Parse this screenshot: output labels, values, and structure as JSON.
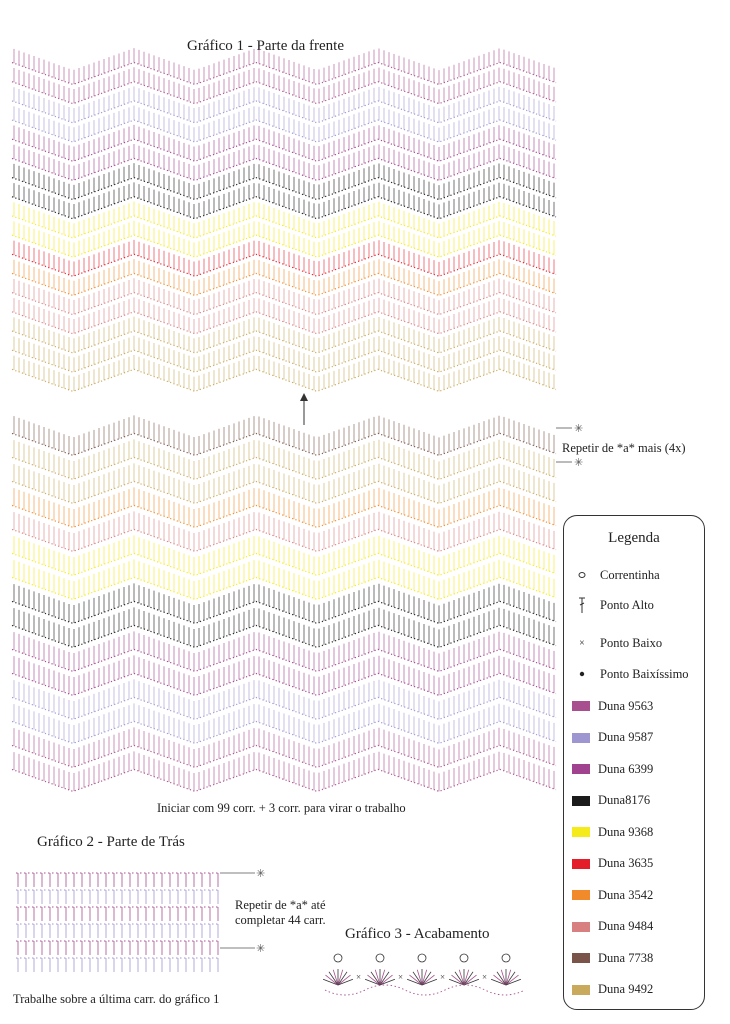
{
  "chart1": {
    "title": "Gráfico 1 - Parte da frente",
    "repeat_note": "Repetir de *a* mais (4x)",
    "start_note": "Iniciar com 99 corr. + 3 corr. para virar o trabalho"
  },
  "chart2": {
    "title": "Gráfico 2 - Parte de Trás",
    "repeat_note_line1": "Repetir de *a* até",
    "repeat_note_line2": "completar 44 carr.",
    "work_note": "Trabalhe sobre a última carr. do gráfico 1"
  },
  "chart3": {
    "title": "Gráfico 3 - Acabamento"
  },
  "legend": {
    "title": "Legenda",
    "stitches": [
      {
        "icon": "chain-stitch-icon",
        "label": "Correntinha"
      },
      {
        "icon": "double-crochet-icon",
        "label": "Ponto Alto"
      },
      {
        "icon": "single-crochet-icon",
        "label": "Ponto Baixo"
      },
      {
        "icon": "slip-stitch-icon",
        "label": "Ponto Baixíssimo"
      }
    ],
    "colors": [
      {
        "label": "Duna 9563",
        "color": "#a8508f"
      },
      {
        "label": "Duna 9587",
        "color": "#9e96d0"
      },
      {
        "label": "Duna 6399",
        "color": "#a0428e"
      },
      {
        "label": "Duna8176",
        "color": "#1b1b1b"
      },
      {
        "label": "Duna 9368",
        "color": "#f5ea1a"
      },
      {
        "label": "Duna 3635",
        "color": "#e31e2a"
      },
      {
        "label": "Duna 3542",
        "color": "#f08a2a"
      },
      {
        "label": "Duna 9484",
        "color": "#d88080"
      },
      {
        "label": "Duna 7738",
        "color": "#7a5448"
      },
      {
        "label": "Duna 9492",
        "color": "#c9a95c"
      }
    ]
  }
}
